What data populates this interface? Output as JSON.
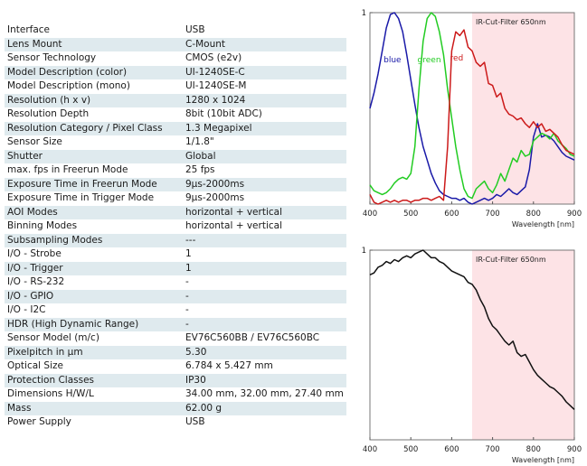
{
  "specs": [
    {
      "label": "Interface",
      "value": "USB"
    },
    {
      "label": "Lens Mount",
      "value": "C-Mount"
    },
    {
      "label": "Sensor Technology",
      "value": "CMOS (e2v)"
    },
    {
      "label": "Model Description (color)",
      "value": "UI-1240SE-C"
    },
    {
      "label": "Model Description (mono)",
      "value": "UI-1240SE-M"
    },
    {
      "label": "Resolution (h x v)",
      "value": "1280 x 1024"
    },
    {
      "label": "Resolution Depth",
      "value": "8bit (10bit ADC)"
    },
    {
      "label": "Resolution Category / Pixel Class",
      "value": "1.3 Megapixel"
    },
    {
      "label": "Sensor Size",
      "value": "1/1.8\""
    },
    {
      "label": "Shutter",
      "value": "Global"
    },
    {
      "label": "max. fps in Freerun Mode",
      "value": "25 fps"
    },
    {
      "label": "Exposure Time in Freerun Mode",
      "value": "9µs-2000ms"
    },
    {
      "label": "Exposure Time in Trigger Mode",
      "value": "9µs-2000ms"
    },
    {
      "label": "AOI Modes",
      "value": "horizontal + vertical"
    },
    {
      "label": "Binning Modes",
      "value": "horizontal + vertical"
    },
    {
      "label": "Subsampling Modes",
      "value": "---"
    },
    {
      "label": "I/O - Strobe",
      "value": "1"
    },
    {
      "label": "I/O - Trigger",
      "value": "1"
    },
    {
      "label": "I/O - RS-232",
      "value": "-"
    },
    {
      "label": "I/O - GPIO",
      "value": "-"
    },
    {
      "label": "I/O - I2C",
      "value": "-"
    },
    {
      "label": "HDR (High Dynamic Range)",
      "value": "-"
    },
    {
      "label": "Sensor Model (m/c)",
      "value": "EV76C560BB / EV76C560BC"
    },
    {
      "label": "Pixelpitch in µm",
      "value": "5.30"
    },
    {
      "label": "Optical Size",
      "value": "6.784 x 5.427 mm"
    },
    {
      "label": "Protection Classes",
      "value": "IP30"
    },
    {
      "label": "Dimensions H/W/L",
      "value": "34.00 mm, 32.00 mm, 27.40 mm"
    },
    {
      "label": "Mass",
      "value": "62.00 g"
    },
    {
      "label": "Power Supply",
      "value": "USB"
    }
  ],
  "chart_data": [
    {
      "type": "line",
      "annotation": "IR-Cut-Filter 650nm",
      "xlabel": "Wavelength [nm]",
      "xlim": [
        400,
        900
      ],
      "ylim": [
        0,
        1
      ],
      "xticks": [
        400,
        500,
        600,
        700,
        800,
        900
      ],
      "yticks": [
        "1"
      ],
      "shaded_region": [
        650,
        900
      ],
      "shade_color": "#fde3e6",
      "series": [
        {
          "name": "blue",
          "color": "#1a1aa8",
          "x": [
            400,
            410,
            420,
            430,
            440,
            450,
            460,
            470,
            480,
            490,
            500,
            510,
            520,
            530,
            540,
            550,
            560,
            570,
            580,
            590,
            600,
            610,
            620,
            630,
            640,
            650,
            660,
            670,
            680,
            690,
            700,
            710,
            720,
            730,
            740,
            750,
            760,
            770,
            780,
            790,
            800,
            810,
            820,
            830,
            840,
            850,
            860,
            870,
            880,
            890,
            900
          ],
          "y": [
            0.5,
            0.58,
            0.68,
            0.8,
            0.92,
            0.99,
            1.0,
            0.97,
            0.9,
            0.78,
            0.65,
            0.52,
            0.4,
            0.3,
            0.23,
            0.16,
            0.11,
            0.07,
            0.05,
            0.04,
            0.03,
            0.03,
            0.02,
            0.03,
            0.01,
            0.0,
            0.01,
            0.02,
            0.03,
            0.02,
            0.03,
            0.05,
            0.04,
            0.06,
            0.08,
            0.06,
            0.05,
            0.07,
            0.09,
            0.18,
            0.35,
            0.42,
            0.35,
            0.36,
            0.35,
            0.33,
            0.3,
            0.27,
            0.25,
            0.24,
            0.23
          ]
        },
        {
          "name": "green",
          "color": "#22cc22",
          "x": [
            400,
            410,
            420,
            430,
            440,
            450,
            460,
            470,
            480,
            490,
            500,
            510,
            520,
            530,
            540,
            550,
            560,
            570,
            580,
            590,
            600,
            610,
            620,
            630,
            640,
            650,
            660,
            670,
            680,
            690,
            700,
            710,
            720,
            730,
            740,
            750,
            760,
            770,
            780,
            790,
            800,
            810,
            820,
            830,
            840,
            850,
            860,
            870,
            880,
            890,
            900
          ],
          "y": [
            0.1,
            0.07,
            0.06,
            0.05,
            0.06,
            0.08,
            0.11,
            0.13,
            0.14,
            0.13,
            0.16,
            0.3,
            0.6,
            0.85,
            0.97,
            1.0,
            0.98,
            0.9,
            0.78,
            0.6,
            0.45,
            0.3,
            0.18,
            0.08,
            0.04,
            0.03,
            0.08,
            0.1,
            0.12,
            0.08,
            0.06,
            0.1,
            0.16,
            0.12,
            0.18,
            0.24,
            0.22,
            0.28,
            0.25,
            0.26,
            0.33,
            0.35,
            0.37,
            0.36,
            0.34,
            0.37,
            0.33,
            0.31,
            0.29,
            0.26,
            0.25
          ]
        },
        {
          "name": "red",
          "color": "#cc1a1a",
          "x": [
            400,
            410,
            420,
            430,
            440,
            450,
            460,
            470,
            480,
            490,
            500,
            510,
            520,
            530,
            540,
            550,
            560,
            570,
            580,
            590,
            600,
            610,
            620,
            630,
            640,
            650,
            660,
            670,
            680,
            690,
            700,
            710,
            720,
            730,
            740,
            750,
            760,
            770,
            780,
            790,
            800,
            810,
            820,
            830,
            840,
            850,
            860,
            870,
            880,
            890,
            900
          ],
          "y": [
            0.05,
            0.01,
            0.0,
            0.01,
            0.02,
            0.01,
            0.02,
            0.01,
            0.02,
            0.02,
            0.01,
            0.02,
            0.02,
            0.03,
            0.03,
            0.02,
            0.03,
            0.04,
            0.02,
            0.3,
            0.8,
            0.9,
            0.88,
            0.91,
            0.82,
            0.8,
            0.74,
            0.72,
            0.74,
            0.63,
            0.62,
            0.56,
            0.58,
            0.5,
            0.47,
            0.46,
            0.44,
            0.45,
            0.42,
            0.4,
            0.43,
            0.4,
            0.42,
            0.38,
            0.39,
            0.37,
            0.35,
            0.31,
            0.28,
            0.27,
            0.26
          ]
        }
      ]
    },
    {
      "type": "line",
      "annotation": "IR-Cut-Filter 650nm",
      "xlabel": "Wavelength [nm]",
      "xlim": [
        400,
        900
      ],
      "ylim": [
        0,
        1
      ],
      "xticks": [
        400,
        500,
        600,
        700,
        800,
        900
      ],
      "yticks": [
        "1"
      ],
      "shaded_region": [
        650,
        900
      ],
      "shade_color": "#fde3e6",
      "series": [
        {
          "color": "#111111",
          "x": [
            400,
            410,
            420,
            430,
            440,
            450,
            460,
            470,
            480,
            490,
            500,
            510,
            520,
            530,
            540,
            550,
            560,
            570,
            580,
            590,
            600,
            610,
            620,
            630,
            640,
            650,
            660,
            670,
            680,
            690,
            700,
            710,
            720,
            730,
            740,
            750,
            760,
            770,
            780,
            790,
            800,
            810,
            820,
            830,
            840,
            850,
            860,
            870,
            880,
            890,
            900
          ],
          "y": [
            0.87,
            0.88,
            0.91,
            0.92,
            0.94,
            0.93,
            0.95,
            0.94,
            0.96,
            0.97,
            0.96,
            0.98,
            0.99,
            1.0,
            0.98,
            0.96,
            0.96,
            0.94,
            0.93,
            0.91,
            0.89,
            0.88,
            0.87,
            0.86,
            0.83,
            0.82,
            0.79,
            0.74,
            0.7,
            0.64,
            0.6,
            0.58,
            0.55,
            0.52,
            0.5,
            0.52,
            0.46,
            0.44,
            0.45,
            0.41,
            0.37,
            0.34,
            0.32,
            0.3,
            0.28,
            0.27,
            0.25,
            0.23,
            0.2,
            0.18,
            0.16
          ]
        }
      ]
    }
  ]
}
